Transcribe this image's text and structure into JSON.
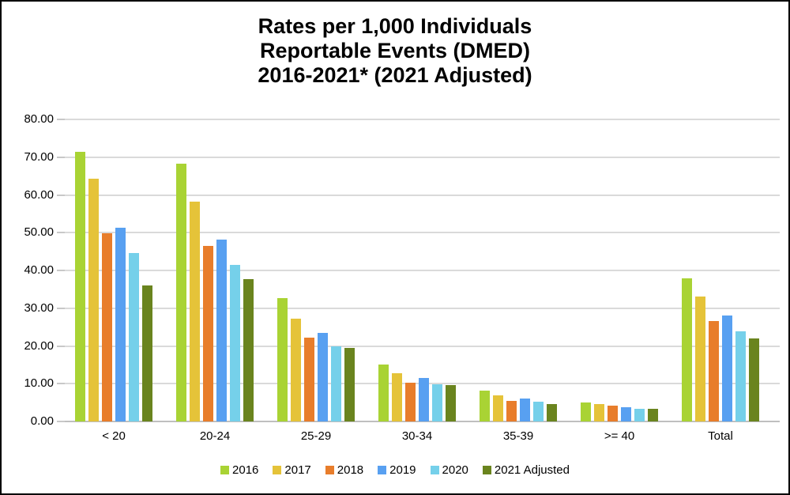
{
  "chart_data": {
    "type": "bar",
    "title": "Rates per 1,000 Individuals Reportable Events (DMED) 2016-2021* (2021 Adjusted)",
    "title_lines": [
      "Rates per 1,000 Individuals",
      "Reportable Events (DMED)",
      "2016-2021* (2021 Adjusted)"
    ],
    "categories": [
      "< 20",
      "20-24",
      "25-29",
      "30-34",
      "35-39",
      ">= 40",
      "Total"
    ],
    "series": [
      {
        "name": "2016",
        "color": "#A9D334",
        "values": [
          71.5,
          68.2,
          32.6,
          15.1,
          8.1,
          5.0,
          37.9
        ]
      },
      {
        "name": "2017",
        "color": "#E5C339",
        "values": [
          64.4,
          58.2,
          27.3,
          12.8,
          7.0,
          4.7,
          33.1
        ]
      },
      {
        "name": "2018",
        "color": "#E87D2B",
        "values": [
          49.8,
          46.5,
          22.3,
          10.2,
          5.5,
          4.1,
          26.7
        ]
      },
      {
        "name": "2019",
        "color": "#58A0F1",
        "values": [
          51.3,
          48.1,
          23.4,
          11.5,
          6.0,
          3.7,
          28.0
        ]
      },
      {
        "name": "2020",
        "color": "#75D0EA",
        "values": [
          44.6,
          41.4,
          19.9,
          9.9,
          5.2,
          3.3,
          23.8
        ]
      },
      {
        "name": "2021 Adjusted",
        "color": "#6A841E",
        "values": [
          36.1,
          37.8,
          19.5,
          9.7,
          4.7,
          3.4,
          21.9
        ]
      }
    ],
    "ylim": [
      0,
      80
    ],
    "ytick_step": 10,
    "yticks": [
      "80.00",
      "70.00",
      "60.00",
      "50.00",
      "40.00",
      "30.00",
      "20.00",
      "10.00",
      "0.00"
    ],
    "xlabel": "",
    "ylabel": "",
    "grid": true,
    "legend_position": "bottom"
  },
  "colors": {
    "background": "#FFFFFF",
    "border": "#000000",
    "title_text": "#000000",
    "axis_text": "#000000",
    "gridline": "#DADADA",
    "baseline": "#BFBFBF",
    "tick_mark": "#C8C8C8"
  }
}
